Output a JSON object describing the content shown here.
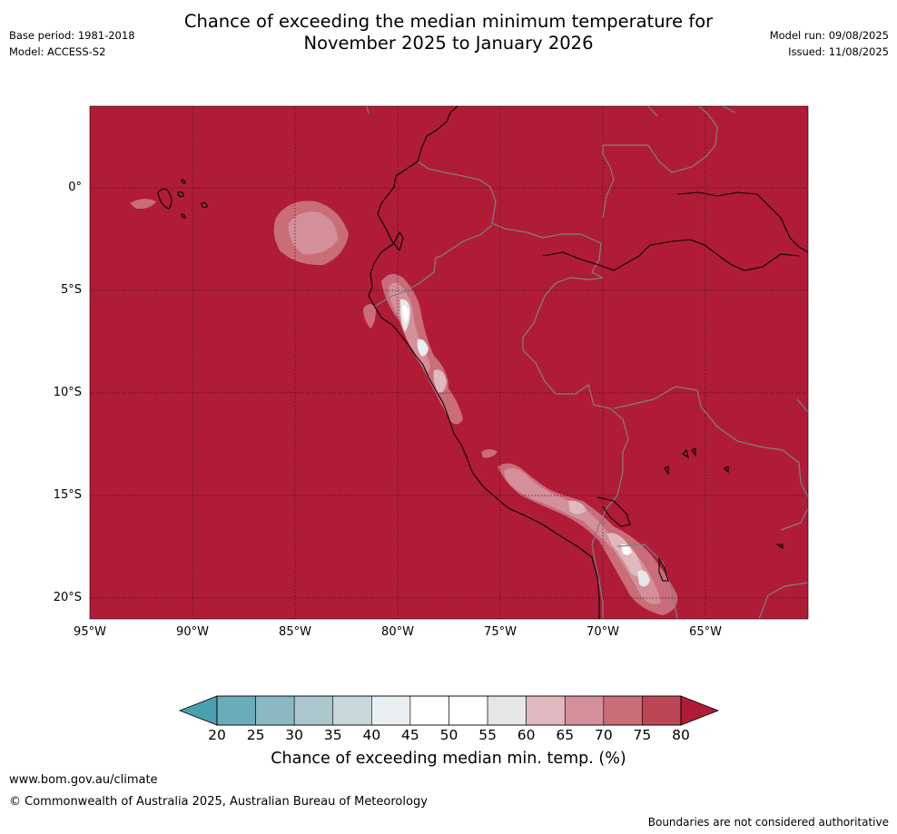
{
  "title_line1": "Chance of exceeding the median minimum temperature for",
  "title_line2": "November 2025 to January 2026",
  "meta": {
    "base_period": "Base period: 1981-2018",
    "model": "Model: ACCESS-S2",
    "model_run": "Model run: 09/08/2025",
    "issued": "Issued: 11/08/2025"
  },
  "map": {
    "lat_labels": [
      "0°",
      "5°S",
      "10°S",
      "15°S",
      "20°S"
    ],
    "lon_labels": [
      "95°W",
      "90°W",
      "85°W",
      "80°W",
      "75°W",
      "70°W",
      "65°W"
    ],
    "background_color": "#b01c38",
    "coast_color": "#000000",
    "border_color": "#808080"
  },
  "colorbar": {
    "ticks": [
      "20",
      "25",
      "30",
      "35",
      "40",
      "45",
      "50",
      "55",
      "60",
      "65",
      "70",
      "75",
      "80"
    ],
    "colors": [
      "#6aadb8",
      "#8ab9c4",
      "#a9c7cd",
      "#c7d7db",
      "#e9eef0",
      "#ffffff",
      "#ffffff",
      "#e6e6e6",
      "#dfb9bf",
      "#d4909a",
      "#c96d79",
      "#bd4655"
    ],
    "under_color": "#4ba0ae",
    "over_color": "#b01c38",
    "label": "Chance of exceeding median min. temp. (%)"
  },
  "footer": {
    "url": "www.bom.gov.au/climate",
    "copyright": "© Commonwealth of Australia 2025, Australian Bureau of Meteorology",
    "note": "Boundaries are not considered authoritative"
  }
}
